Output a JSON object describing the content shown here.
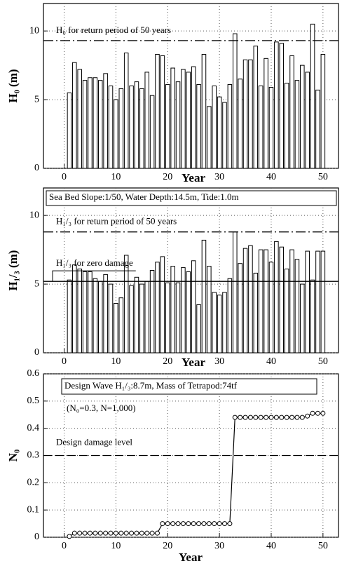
{
  "chart_data": [
    {
      "type": "bar",
      "ylabel": "H₀ (m)",
      "xlabel": "Year",
      "color": "#ffffff",
      "x": [
        1,
        2,
        3,
        4,
        5,
        6,
        7,
        8,
        9,
        10,
        11,
        12,
        13,
        14,
        15,
        16,
        17,
        18,
        19,
        20,
        21,
        22,
        23,
        24,
        25,
        26,
        27,
        28,
        29,
        30,
        31,
        32,
        33,
        34,
        35,
        36,
        37,
        38,
        39,
        40,
        41,
        42,
        43,
        44,
        45,
        46,
        47,
        48,
        49,
        50
      ],
      "values": [
        5.5,
        7.7,
        7.2,
        6.4,
        6.6,
        6.6,
        6.4,
        6.9,
        6.0,
        5.0,
        5.8,
        8.4,
        6.0,
        6.3,
        5.8,
        7.0,
        5.3,
        8.3,
        8.2,
        6.1,
        7.3,
        6.3,
        7.2,
        7.0,
        7.4,
        6.1,
        8.3,
        4.5,
        6.0,
        5.2,
        4.8,
        6.1,
        9.8,
        6.5,
        7.9,
        7.9,
        8.9,
        6.0,
        8.0,
        5.9,
        9.2,
        9.1,
        6.2,
        8.2,
        6.4,
        7.5,
        7.0,
        10.5,
        5.7,
        8.3
      ],
      "xlim": [
        -4,
        53
      ],
      "xticks": [
        0,
        10,
        20,
        30,
        40,
        50
      ],
      "ylim": [
        0,
        12
      ],
      "yticks": [
        0,
        5,
        10
      ],
      "grid": true,
      "reference_lines": [
        {
          "value": 9.3,
          "label": "H₀ for return period of 50 years"
        }
      ],
      "annotations": []
    },
    {
      "type": "bar",
      "ylabel": "H₁/₃ (m)",
      "xlabel": "Year",
      "color": "#ffffff",
      "x": [
        1,
        2,
        3,
        4,
        5,
        6,
        7,
        8,
        9,
        10,
        11,
        12,
        13,
        14,
        15,
        16,
        17,
        18,
        19,
        20,
        21,
        22,
        23,
        24,
        25,
        26,
        27,
        28,
        29,
        30,
        31,
        32,
        33,
        34,
        35,
        36,
        37,
        38,
        39,
        40,
        41,
        42,
        43,
        44,
        45,
        46,
        47,
        48,
        49,
        50
      ],
      "values": [
        5.3,
        6.4,
        6.1,
        5.9,
        5.9,
        5.4,
        5.2,
        5.7,
        5.0,
        3.6,
        4.0,
        7.1,
        4.9,
        5.5,
        5.0,
        5.2,
        6.0,
        6.6,
        7.0,
        5.1,
        6.3,
        5.1,
        6.2,
        5.9,
        6.7,
        3.5,
        8.2,
        6.3,
        4.4,
        4.2,
        4.4,
        5.4,
        8.8,
        6.5,
        7.6,
        7.8,
        5.8,
        7.5,
        7.5,
        6.6,
        8.1,
        7.7,
        6.1,
        7.5,
        6.8,
        5.0,
        7.4,
        5.3,
        7.4,
        7.4
      ],
      "xlim": [
        -4,
        53
      ],
      "xticks": [
        0,
        10,
        20,
        30,
        40,
        50
      ],
      "ylim": [
        0,
        12
      ],
      "yticks": [
        0,
        5,
        10
      ],
      "grid": true,
      "reference_lines": [
        {
          "value": 8.8,
          "label": "H₁/₃ for return period of 50 years"
        },
        {
          "value": 5.2,
          "label": "H₁/₃ for zero damage"
        }
      ],
      "annotations": [
        "Sea Bed Slope:1/50, Water Depth:14.5m, Tide:1.0m"
      ]
    },
    {
      "type": "line",
      "ylabel": "N₀",
      "xlabel": "Year",
      "color": "#000000",
      "x": [
        1,
        2,
        3,
        4,
        5,
        6,
        7,
        8,
        9,
        10,
        11,
        12,
        13,
        14,
        15,
        16,
        17,
        18,
        19,
        20,
        21,
        22,
        23,
        24,
        25,
        26,
        27,
        28,
        29,
        30,
        31,
        32,
        33,
        34,
        35,
        36,
        37,
        38,
        39,
        40,
        41,
        42,
        43,
        44,
        45,
        46,
        47,
        48,
        49,
        50
      ],
      "values": [
        0.003,
        0.015,
        0.015,
        0.015,
        0.015,
        0.015,
        0.015,
        0.015,
        0.015,
        0.015,
        0.015,
        0.015,
        0.015,
        0.015,
        0.015,
        0.015,
        0.015,
        0.015,
        0.05,
        0.05,
        0.05,
        0.05,
        0.05,
        0.05,
        0.05,
        0.05,
        0.05,
        0.05,
        0.05,
        0.05,
        0.05,
        0.05,
        0.44,
        0.44,
        0.44,
        0.44,
        0.44,
        0.44,
        0.44,
        0.44,
        0.44,
        0.44,
        0.44,
        0.44,
        0.44,
        0.44,
        0.445,
        0.455,
        0.455,
        0.455
      ],
      "xlim": [
        -4,
        53
      ],
      "xticks": [
        0,
        10,
        20,
        30,
        40,
        50
      ],
      "ylim": [
        0,
        0.6
      ],
      "yticks": [
        0,
        0.1,
        0.2,
        0.3,
        0.4,
        0.5,
        0.6
      ],
      "grid": true,
      "reference_lines": [
        {
          "value": 0.3,
          "label": "Design damage level"
        }
      ],
      "annotations": [
        "Design Wave H₁/₃:8.7m, Mass of Tetrapod:74tf",
        "(N₀=0.3, N=1,000)"
      ]
    }
  ]
}
